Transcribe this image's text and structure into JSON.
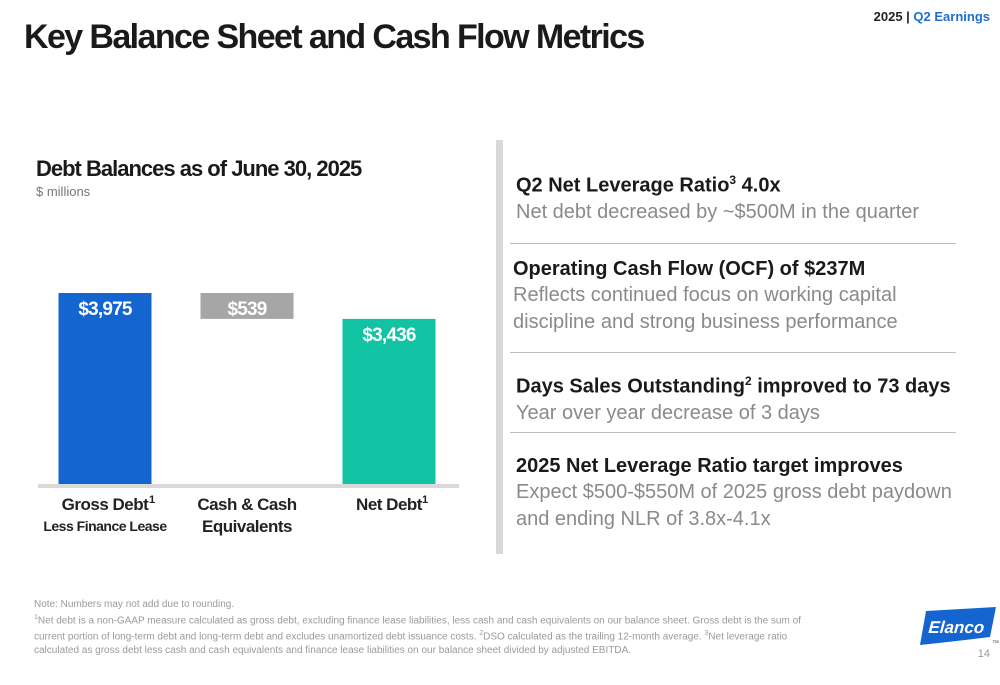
{
  "page": {
    "title": "Key Balance Sheet and Cash Flow Metrics",
    "header_year": "2025",
    "header_sep": " | ",
    "header_label": "Q2 Earnings",
    "page_number": "14"
  },
  "chart_data": {
    "type": "bar",
    "subtype": "waterfall",
    "title": "Debt Balances as of June 30, 2025",
    "subtitle": "$ millions",
    "categories": [
      "Gross Debt Less Finance Lease",
      "Cash & Cash Equivalents",
      "Net Debt"
    ],
    "values": [
      3975,
      -539,
      3436
    ],
    "data_labels": [
      "$3,975",
      "$539",
      "$3,436"
    ],
    "tick_labels": [
      {
        "lines": [
          "Gross Debt",
          "Less Finance Lease"
        ],
        "sup": "1"
      },
      {
        "lines": [
          "Cash & Cash",
          "Equivalents"
        ],
        "sup": ""
      },
      {
        "lines": [
          "Net Debt"
        ],
        "sup": "1"
      }
    ],
    "colors": [
      "#1565d0",
      "#a6a6a6",
      "#12c3a3"
    ],
    "ylim": [
      0,
      3975
    ],
    "grid": false,
    "legend": "none"
  },
  "metrics": [
    {
      "head": "Q2 Net Leverage Ratio",
      "head_sup": "3",
      "head_tail": " 4.0x",
      "body": [
        "Net debt decreased by ~$500M in the quarter"
      ]
    },
    {
      "head": "Operating Cash Flow (OCF) of $237M",
      "head_sup": "",
      "head_tail": "",
      "body": [
        "Reflects continued focus on working capital",
        "discipline and strong business performance"
      ]
    },
    {
      "head": "Days Sales Outstanding",
      "head_sup": "2",
      "head_tail": " improved to 73 days",
      "body": [
        "Year over year decrease of 3 days"
      ]
    },
    {
      "head": "2025 Net Leverage Ratio target improves",
      "head_sup": "",
      "head_tail": "",
      "body": [
        "Expect $500-$550M of 2025 gross debt paydown",
        "and ending NLR of 3.8x-4.1x"
      ]
    }
  ],
  "notes": {
    "line0": "Note: Numbers may not add due to rounding.",
    "s1": "1",
    "t1": "Net debt is a non-GAAP measure calculated as gross debt, excluding finance lease liabilities, less cash and cash equivalents on our balance sheet. Gross debt is the sum of current portion of long-term debt and long-term debt and excludes unamortized debt issuance costs. ",
    "s2": "2",
    "t2": "DSO calculated as the trailing 12-month average. ",
    "s3": "3",
    "t3": "Net leverage ratio calculated as gross debt less cash and cash equivalents and finance lease liabilities on our balance sheet divided by adjusted EBITDA."
  },
  "logo": {
    "text": "Elanco",
    "tm": "™",
    "color": "#1565d0"
  }
}
